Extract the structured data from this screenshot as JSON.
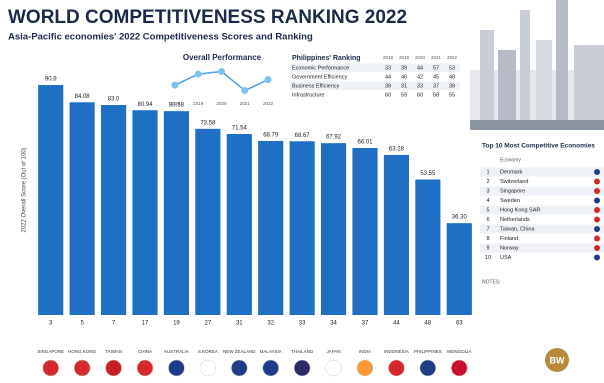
{
  "chart_data": [
    {
      "type": "bar",
      "title": "WORLD COMPETITIVENESS RANKING 2022",
      "subtitle": "Asia-Pacific economies' 2022 Competitiveness Scores and Ranking",
      "y_label": "2022 Overall Score (Out of 100)",
      "categories": [
        "SINGAPORE",
        "HONG KONG",
        "TAIWAN",
        "CHINA",
        "AUSTRALIA",
        "S.KOREA",
        "NEW ZEALAND",
        "MALAYSIA",
        "THAILAND",
        "JAPAN",
        "INDIA",
        "INDONESIA",
        "PHILIPPINES",
        "MONGOLIA"
      ],
      "values": [
        90.9,
        84.08,
        83.0,
        80.94,
        80.58,
        73.58,
        71.54,
        68.79,
        68.67,
        67.92,
        66.01,
        63.28,
        53.55,
        36.3
      ],
      "value_labels": [
        "90.9",
        "84.08",
        "83.0",
        "80.94",
        "80.58",
        "73.58",
        "71.54",
        "68.79",
        "68.67",
        "67.92",
        "66.01",
        "63.28",
        "53.55",
        "36.30"
      ],
      "ranks": [
        3,
        5,
        7,
        17,
        19,
        27,
        31,
        32,
        33,
        34,
        37,
        44,
        48,
        63
      ],
      "color": "#1f6fc5",
      "ylim": [
        0,
        100
      ]
    },
    {
      "type": "line",
      "title": "Overall Performance",
      "x": [
        "2018",
        "2019",
        "2020",
        "2021",
        "2022"
      ],
      "values": [
        50,
        46,
        45,
        52,
        48
      ],
      "color": "#4a9fd8",
      "ylim": [
        54,
        43
      ]
    }
  ],
  "ph_table": {
    "title": "Philippines' Ranking",
    "columns": [
      "2018",
      "2019",
      "2020",
      "2021",
      "2022"
    ],
    "rows": [
      {
        "label": "Economic Performance",
        "values": [
          "33",
          "39",
          "44",
          "57",
          "53"
        ]
      },
      {
        "label": "Government Efficiency",
        "values": [
          "44",
          "46",
          "42",
          "45",
          "48"
        ]
      },
      {
        "label": "Business Efficiency",
        "values": [
          "39",
          "31",
          "33",
          "37",
          "39"
        ]
      },
      {
        "label": "Infrastructure",
        "values": [
          "60",
          "59",
          "60",
          "58",
          "55"
        ]
      }
    ]
  },
  "top10": {
    "title": "Top 10 Most Competitive Economies",
    "column": "Economy",
    "ranks": [
      "1",
      "2",
      "3",
      "4",
      "5",
      "6",
      "7",
      "8",
      "9",
      "10"
    ],
    "economies": [
      "Denmark",
      "Switzerland",
      "Singapore",
      "Sweden",
      "Hong Kong SAR",
      "Netherlands",
      "Taiwan, China",
      "Finland",
      "Norway",
      "USA"
    ]
  },
  "notes": "NOTES:",
  "logo": "BW"
}
